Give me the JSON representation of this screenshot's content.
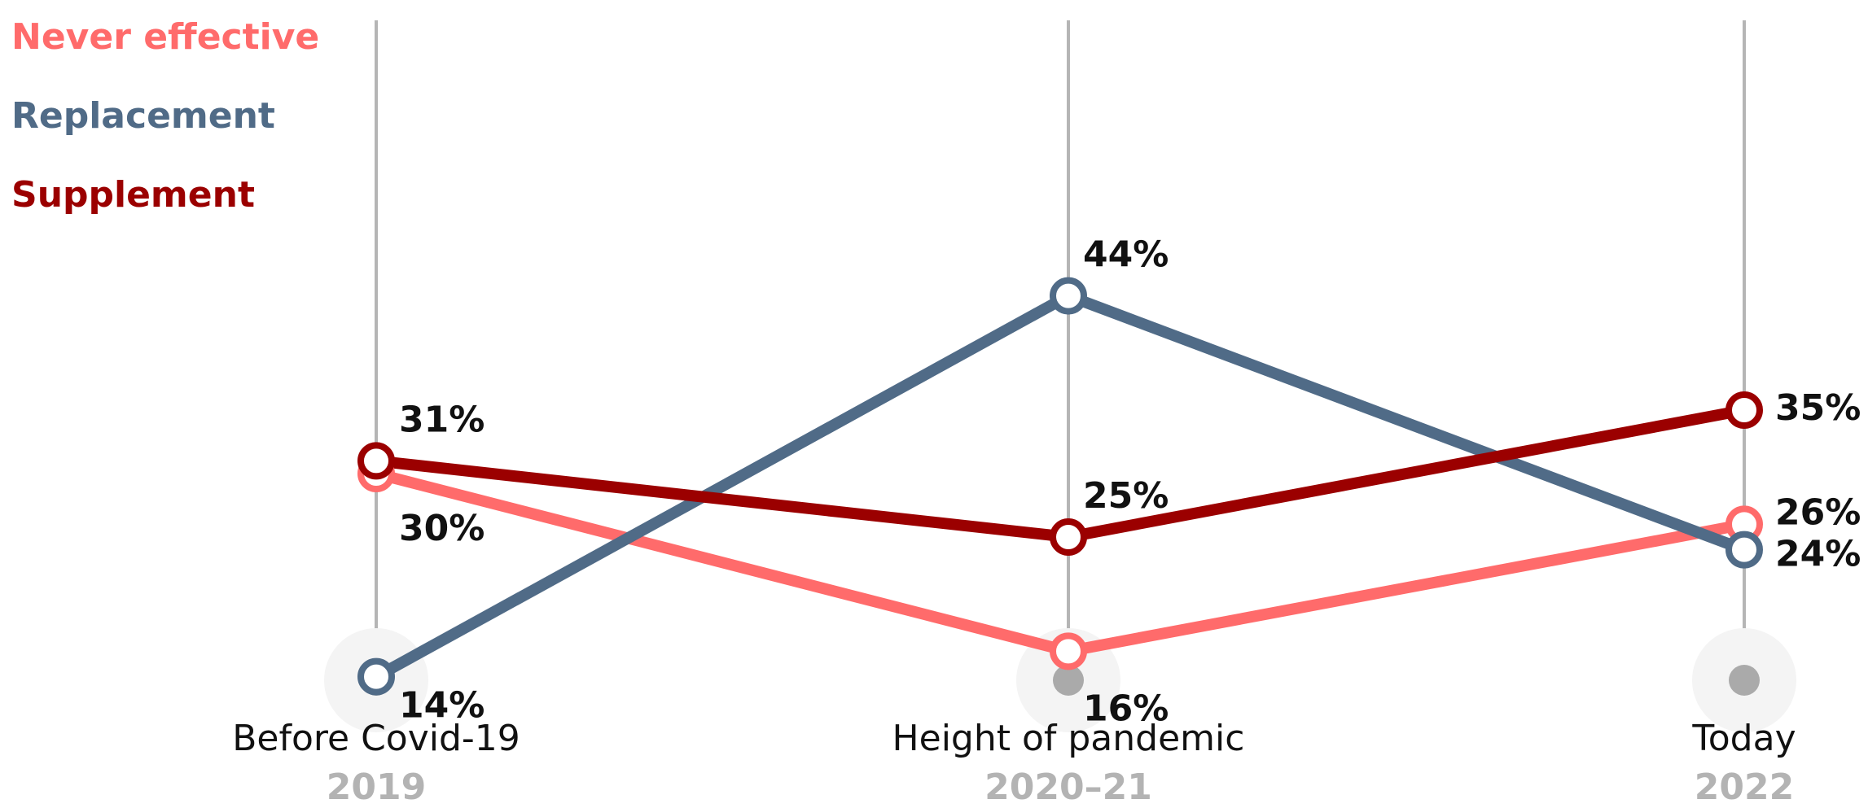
{
  "colors": {
    "never_effective": "#ff6b6b",
    "replacement": "#506b87",
    "supplement": "#9b0000",
    "axis_line": "#b5b5b5",
    "base_dot": "#aaaaaa",
    "year_text": "#b3b3b3"
  },
  "legend": {
    "items": [
      {
        "label": "Never effective"
      },
      {
        "label": "Replacement"
      },
      {
        "label": "Supplement"
      }
    ]
  },
  "chart_data": {
    "type": "line",
    "categories": [
      "Before Covid-19",
      "Height of pandemic",
      "Today"
    ],
    "years": [
      "2019",
      "2020–21",
      "2022"
    ],
    "ylim": [
      0,
      60
    ],
    "grid": false,
    "legend_position": "top-left",
    "series": [
      {
        "name": "Never effective",
        "values": [
          30,
          16,
          26
        ],
        "labels": [
          "30%",
          "16%",
          "26%"
        ]
      },
      {
        "name": "Replacement",
        "values": [
          14,
          44,
          24
        ],
        "labels": [
          "14%",
          "44%",
          "24%"
        ]
      },
      {
        "name": "Supplement",
        "values": [
          31,
          25,
          35
        ],
        "labels": [
          "31%",
          "25%",
          "35%"
        ]
      }
    ]
  }
}
